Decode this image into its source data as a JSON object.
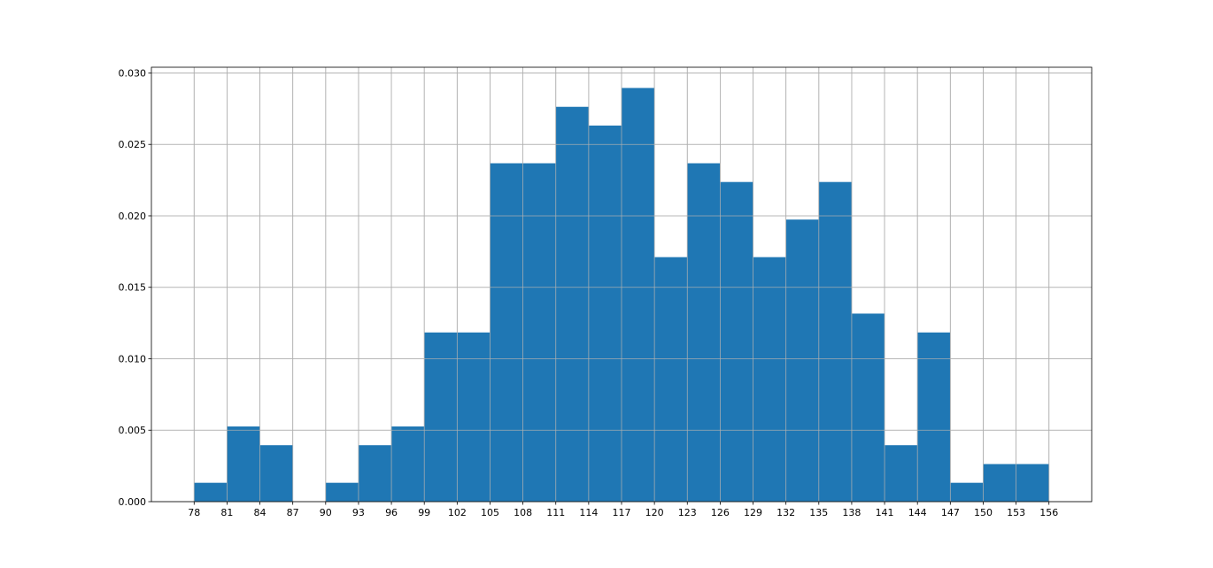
{
  "chart_data": {
    "type": "bar",
    "histogram": true,
    "bin_width": 3,
    "bins": [
      {
        "start": 78,
        "end": 81,
        "value": 0.00132
      },
      {
        "start": 81,
        "end": 84,
        "value": 0.00526
      },
      {
        "start": 84,
        "end": 87,
        "value": 0.00395
      },
      {
        "start": 87,
        "end": 90,
        "value": 0
      },
      {
        "start": 90,
        "end": 93,
        "value": 0.00132
      },
      {
        "start": 93,
        "end": 96,
        "value": 0.00395
      },
      {
        "start": 96,
        "end": 99,
        "value": 0.00526
      },
      {
        "start": 99,
        "end": 102,
        "value": 0.01184
      },
      {
        "start": 102,
        "end": 105,
        "value": 0.01184
      },
      {
        "start": 105,
        "end": 108,
        "value": 0.02368
      },
      {
        "start": 108,
        "end": 111,
        "value": 0.02368
      },
      {
        "start": 111,
        "end": 114,
        "value": 0.02763
      },
      {
        "start": 114,
        "end": 117,
        "value": 0.02632
      },
      {
        "start": 117,
        "end": 120,
        "value": 0.02895
      },
      {
        "start": 120,
        "end": 123,
        "value": 0.01711
      },
      {
        "start": 123,
        "end": 126,
        "value": 0.02368
      },
      {
        "start": 126,
        "end": 129,
        "value": 0.02237
      },
      {
        "start": 129,
        "end": 132,
        "value": 0.01711
      },
      {
        "start": 132,
        "end": 135,
        "value": 0.01974
      },
      {
        "start": 135,
        "end": 138,
        "value": 0.02237
      },
      {
        "start": 138,
        "end": 141,
        "value": 0.01316
      },
      {
        "start": 141,
        "end": 144,
        "value": 0.00395
      },
      {
        "start": 144,
        "end": 147,
        "value": 0.01184
      },
      {
        "start": 147,
        "end": 150,
        "value": 0.00132
      },
      {
        "start": 150,
        "end": 153,
        "value": 0.00263
      },
      {
        "start": 153,
        "end": 156,
        "value": 0.00263
      }
    ],
    "xticks": [
      "78",
      "81",
      "84",
      "87",
      "90",
      "93",
      "96",
      "99",
      "102",
      "105",
      "108",
      "111",
      "114",
      "117",
      "120",
      "123",
      "126",
      "129",
      "132",
      "135",
      "138",
      "141",
      "144",
      "147",
      "150",
      "153",
      "156"
    ],
    "yticks": [
      "0.000",
      "0.005",
      "0.010",
      "0.015",
      "0.020",
      "0.025",
      "0.030"
    ],
    "xlim": [
      74.1,
      159.9
    ],
    "ylim": [
      0,
      0.0304
    ],
    "grid": true,
    "title": "",
    "xlabel": "",
    "ylabel": "",
    "colors": {
      "bar": "#1f77b4",
      "grid": "#b0b0b0",
      "axis": "#000000"
    }
  }
}
